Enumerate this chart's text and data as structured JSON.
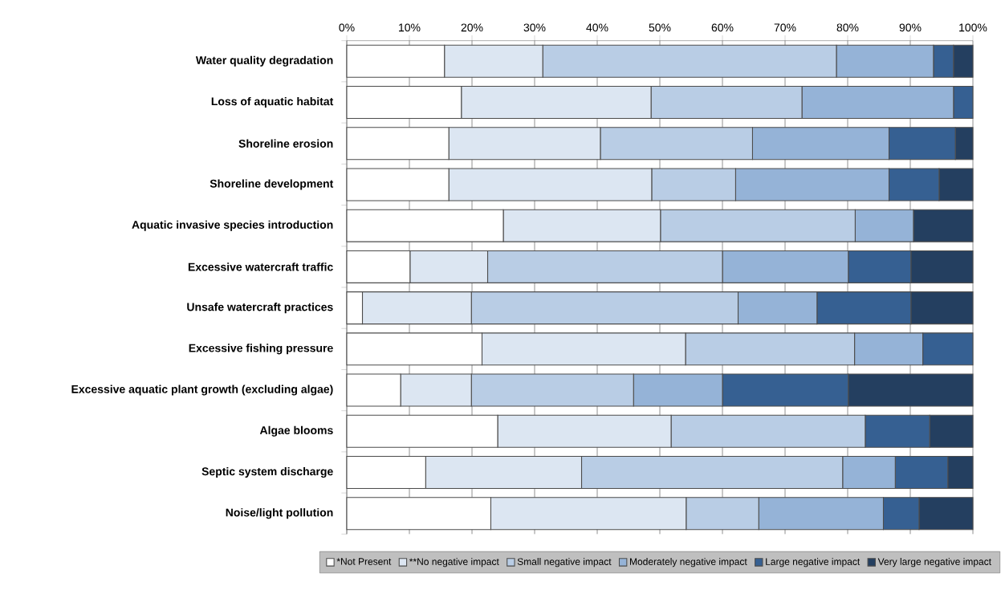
{
  "chart_data": {
    "type": "bar",
    "orientation": "horizontal",
    "stacked": true,
    "categories": [
      "Water quality degradation",
      "Loss of aquatic habitat",
      "Shoreline erosion",
      "Shoreline development",
      "Aquatic invasive species introduction",
      "Excessive watercraft traffic",
      "Unsafe watercraft practices",
      "Excessive fishing pressure",
      "Excessive aquatic plant growth (excluding algae)",
      "Algae blooms",
      "Septic system discharge",
      "Noise/light pollution"
    ],
    "series": [
      {
        "name": "*Not Present",
        "color": "#ffffff",
        "values": [
          15.6,
          18.3,
          16.3,
          16.3,
          25.0,
          10.1,
          2.5,
          21.6,
          8.6,
          24.1,
          12.6,
          23.0
        ]
      },
      {
        "name": "**No negative impact",
        "color": "#dce6f2",
        "values": [
          15.7,
          30.3,
          24.2,
          32.4,
          25.1,
          12.4,
          17.4,
          32.5,
          11.3,
          27.7,
          24.9,
          31.2
        ]
      },
      {
        "name": "Small negative impact",
        "color": "#b9cde5",
        "values": [
          46.9,
          24.1,
          24.3,
          13.4,
          31.1,
          37.5,
          42.6,
          27.0,
          25.9,
          31.0,
          41.7,
          11.6
        ]
      },
      {
        "name": "Moderately negative impact",
        "color": "#95b3d7",
        "values": [
          15.5,
          24.2,
          21.8,
          24.5,
          9.3,
          20.1,
          12.6,
          10.9,
          14.2,
          0,
          8.4,
          19.9
        ]
      },
      {
        "name": "Large negative impact",
        "color": "#366092",
        "values": [
          3.2,
          3.1,
          10.6,
          8.0,
          0,
          10.0,
          15.0,
          8.0,
          20.1,
          10.3,
          8.4,
          5.7
        ]
      },
      {
        "name": "Very large negative impact",
        "color": "#243f60",
        "values": [
          3.1,
          0,
          2.8,
          5.4,
          9.5,
          9.9,
          9.9,
          0,
          19.9,
          6.9,
          4.0,
          8.6
        ]
      }
    ],
    "xlim": [
      0,
      100
    ],
    "xticks": [
      {
        "value": 0,
        "label": "0%"
      },
      {
        "value": 10,
        "label": "10%"
      },
      {
        "value": 20,
        "label": "20%"
      },
      {
        "value": 30,
        "label": "30%"
      },
      {
        "value": 40,
        "label": "40%"
      },
      {
        "value": 50,
        "label": "50%"
      },
      {
        "value": 60,
        "label": "60%"
      },
      {
        "value": 70,
        "label": "70%"
      },
      {
        "value": 80,
        "label": "80%"
      },
      {
        "value": 90,
        "label": "90%"
      },
      {
        "value": 100,
        "label": "100%"
      }
    ],
    "grid": "x",
    "legend": "bottom"
  }
}
